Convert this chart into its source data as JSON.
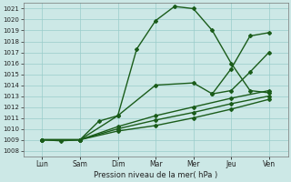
{
  "xlabel": "Pression niveau de la mer( hPa )",
  "x_labels": [
    "Lun",
    "Sam",
    "Dim",
    "Mar",
    "Mer",
    "Jeu",
    "Ven"
  ],
  "x_positions": [
    0,
    1,
    2,
    3,
    4,
    5,
    6
  ],
  "ylim": [
    1007.5,
    1021.5
  ],
  "yticks": [
    1008,
    1009,
    1010,
    1011,
    1012,
    1013,
    1014,
    1015,
    1016,
    1017,
    1018,
    1019,
    1020,
    1021
  ],
  "background_color": "#cce8e6",
  "grid_color": "#99ccca",
  "line_color": "#1a5c1a",
  "lines": [
    {
      "x": [
        0.0,
        0.5,
        1.0,
        1.5,
        2.0,
        2.5,
        3.0,
        3.5,
        4.0,
        4.5,
        5.0,
        5.5,
        6.0
      ],
      "y": [
        1009.0,
        1008.9,
        1009.0,
        1010.7,
        1011.2,
        1017.3,
        1019.9,
        1021.2,
        1021.0,
        1019.0,
        1016.0,
        1013.5,
        1013.3
      ]
    },
    {
      "x": [
        0.0,
        1.0,
        2.0,
        3.0,
        4.0,
        5.0,
        6.0
      ],
      "y": [
        1009.0,
        1009.0,
        1009.8,
        1010.3,
        1011.0,
        1011.8,
        1012.7
      ]
    },
    {
      "x": [
        0.0,
        1.0,
        2.0,
        3.0,
        4.0,
        5.0,
        6.0
      ],
      "y": [
        1009.0,
        1009.0,
        1010.0,
        1010.8,
        1011.5,
        1012.3,
        1013.0
      ]
    },
    {
      "x": [
        0.0,
        1.0,
        2.0,
        3.0,
        4.0,
        5.0,
        6.0
      ],
      "y": [
        1009.0,
        1009.0,
        1010.2,
        1011.2,
        1012.0,
        1012.8,
        1013.5
      ]
    },
    {
      "x": [
        0.0,
        1.0,
        2.0,
        3.0,
        4.0,
        4.5,
        5.0,
        5.5,
        6.0
      ],
      "y": [
        1009.0,
        1009.0,
        1011.2,
        1014.0,
        1014.2,
        1013.2,
        1013.5,
        1015.2,
        1017.0
      ]
    },
    {
      "x": [
        4.5,
        5.0,
        5.5,
        6.0
      ],
      "y": [
        1013.2,
        1015.5,
        1018.5,
        1018.8
      ]
    }
  ],
  "marker": "D",
  "marker_size": 2.0,
  "line_width": 1.0,
  "tick_fontsize": 5.0,
  "xlabel_fontsize": 6.0
}
